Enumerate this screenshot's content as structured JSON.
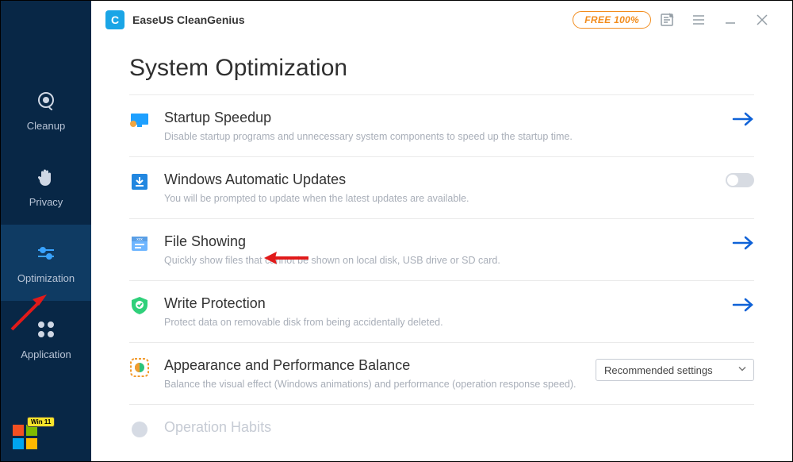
{
  "app": {
    "logo_letter": "C",
    "name": "EaseUS CleanGenius",
    "free_badge": "FREE 100%"
  },
  "colors": {
    "sidebar_bg": "#082746",
    "sidebar_active": "#0f3b63",
    "accent_blue": "#0f62d7",
    "logo_bg": "#1aa5e6",
    "badge_border": "#f28c1c",
    "divider": "#eaeaea",
    "desc_text": "#a8aeb8",
    "red_arrow": "#e11a1a"
  },
  "nav": {
    "items": [
      {
        "label": "Cleanup",
        "active": false
      },
      {
        "label": "Privacy",
        "active": false
      },
      {
        "label": "Optimization",
        "active": true
      },
      {
        "label": "Application",
        "active": false
      }
    ]
  },
  "page": {
    "title": "System Optimization",
    "options": [
      {
        "id": "startup-speedup",
        "title": "Startup Speedup",
        "desc": "Disable startup programs and unnecessary system components to speed up the startup time.",
        "action": "arrow",
        "icon_bg": "#1ea0ff",
        "icon_accent": "#f2a640"
      },
      {
        "id": "windows-updates",
        "title": "Windows Automatic Updates",
        "desc": "You will be prompted to update when the latest updates are available.",
        "action": "toggle",
        "toggle_on": false,
        "icon_bg": "#2287e0",
        "icon_accent": "#ffffff"
      },
      {
        "id": "file-showing",
        "title": "File Showing",
        "desc": "Quickly show files that cannot be shown on local disk, USB drive or SD card.",
        "action": "arrow",
        "icon_bg": "#6fb6ff",
        "icon_accent": "#ffffff"
      },
      {
        "id": "write-protection",
        "title": "Write Protection",
        "desc": "Protect data on removable disk from being accidentally deleted.",
        "action": "arrow",
        "icon_bg": "#2fd07a",
        "icon_accent": "#ffffff"
      },
      {
        "id": "appearance-balance",
        "title": "Appearance and Performance Balance",
        "desc": "Balance the visual effect (Windows animations) and performance (operation response speed).",
        "action": "select",
        "select_value": "Recommended settings",
        "icon_bg": "#f29b2e",
        "icon_accent": "#2bc27a"
      },
      {
        "id": "operation-habits",
        "title": "Operation Habits",
        "desc": "",
        "action": "none",
        "icon_bg": "#d6dbe4",
        "icon_accent": "#d6dbe4",
        "faded": true
      }
    ]
  },
  "win_badge": {
    "label": "Win 11",
    "colors": [
      "#f25022",
      "#7fba00",
      "#00a4ef",
      "#ffb900"
    ]
  }
}
